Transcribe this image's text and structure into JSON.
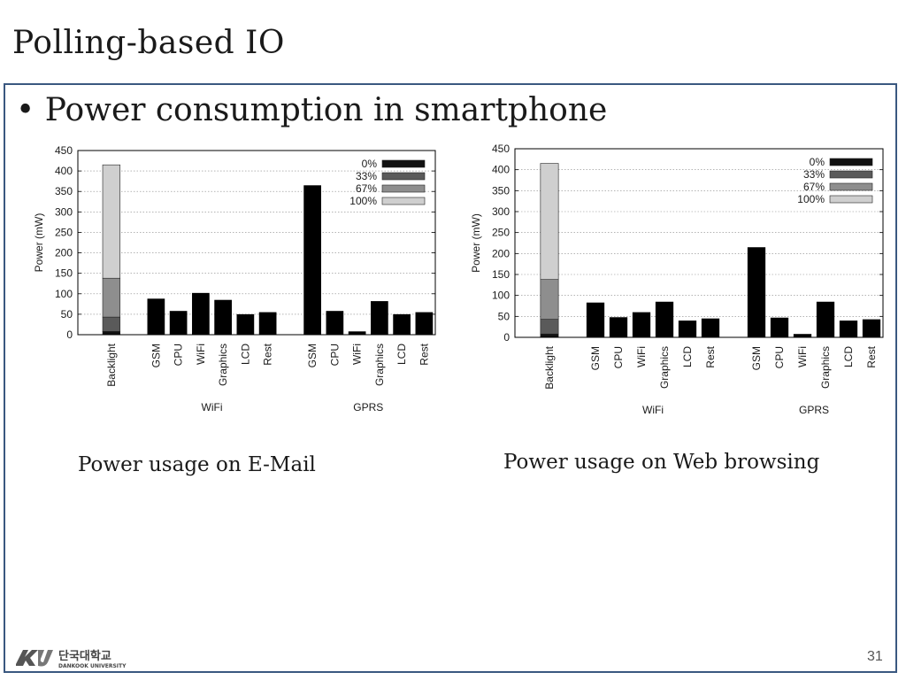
{
  "slide": {
    "title": "Polling-based IO",
    "bullet": "Power consumption in smartphone",
    "page_number": "31",
    "logo": {
      "korean": "단국대학교",
      "english": "DANKOOK UNIVERSITY"
    }
  },
  "chart_data": [
    {
      "type": "bar",
      "title": "",
      "caption": "Power usage on E-Mail",
      "ylabel": "Power (mW)",
      "xlabel": "",
      "ylim": [
        0,
        450
      ],
      "yticks": [
        "0",
        "50",
        "100",
        "150",
        "200",
        "250",
        "300",
        "350",
        "400",
        "450"
      ],
      "grid": true,
      "legend_position": "top-right",
      "legend": [
        {
          "label": "0%",
          "color": "#111111"
        },
        {
          "label": "33%",
          "color": "#5a5a5a"
        },
        {
          "label": "67%",
          "color": "#8e8e8e"
        },
        {
          "label": "100%",
          "color": "#cfcfcf"
        }
      ],
      "stacked": {
        "category": "Backlight",
        "segments": [
          {
            "level": "0%",
            "value": 8
          },
          {
            "level": "33%",
            "value": 35
          },
          {
            "level": "67%",
            "value": 95
          },
          {
            "level": "100%",
            "value": 277
          }
        ]
      },
      "groups": [
        {
          "name": "WiFi",
          "categories": [
            "GSM",
            "CPU",
            "WiFi",
            "Graphics",
            "LCD",
            "Rest"
          ],
          "values": [
            88,
            58,
            102,
            85,
            50,
            55
          ]
        },
        {
          "name": "GPRS",
          "categories": [
            "GSM",
            "CPU",
            "WiFi",
            "Graphics",
            "LCD",
            "Rest"
          ],
          "values": [
            365,
            58,
            8,
            82,
            50,
            55
          ]
        }
      ]
    },
    {
      "type": "bar",
      "title": "",
      "caption": "Power usage on Web browsing",
      "ylabel": "Power (mW)",
      "xlabel": "",
      "ylim": [
        0,
        450
      ],
      "yticks": [
        "0",
        "50",
        "100",
        "150",
        "200",
        "250",
        "300",
        "350",
        "400",
        "450"
      ],
      "grid": true,
      "legend_position": "top-right",
      "legend": [
        {
          "label": "0%",
          "color": "#111111"
        },
        {
          "label": "33%",
          "color": "#5a5a5a"
        },
        {
          "label": "67%",
          "color": "#8e8e8e"
        },
        {
          "label": "100%",
          "color": "#cfcfcf"
        }
      ],
      "stacked": {
        "category": "Backlight",
        "segments": [
          {
            "level": "0%",
            "value": 8
          },
          {
            "level": "33%",
            "value": 35
          },
          {
            "level": "67%",
            "value": 95
          },
          {
            "level": "100%",
            "value": 277
          }
        ]
      },
      "groups": [
        {
          "name": "WiFi",
          "categories": [
            "GSM",
            "CPU",
            "WiFi",
            "Graphics",
            "LCD",
            "Rest"
          ],
          "values": [
            83,
            48,
            60,
            85,
            40,
            45
          ]
        },
        {
          "name": "GPRS",
          "categories": [
            "GSM",
            "CPU",
            "WiFi",
            "Graphics",
            "LCD",
            "Rest"
          ],
          "values": [
            215,
            47,
            8,
            85,
            40,
            43
          ]
        }
      ]
    }
  ]
}
